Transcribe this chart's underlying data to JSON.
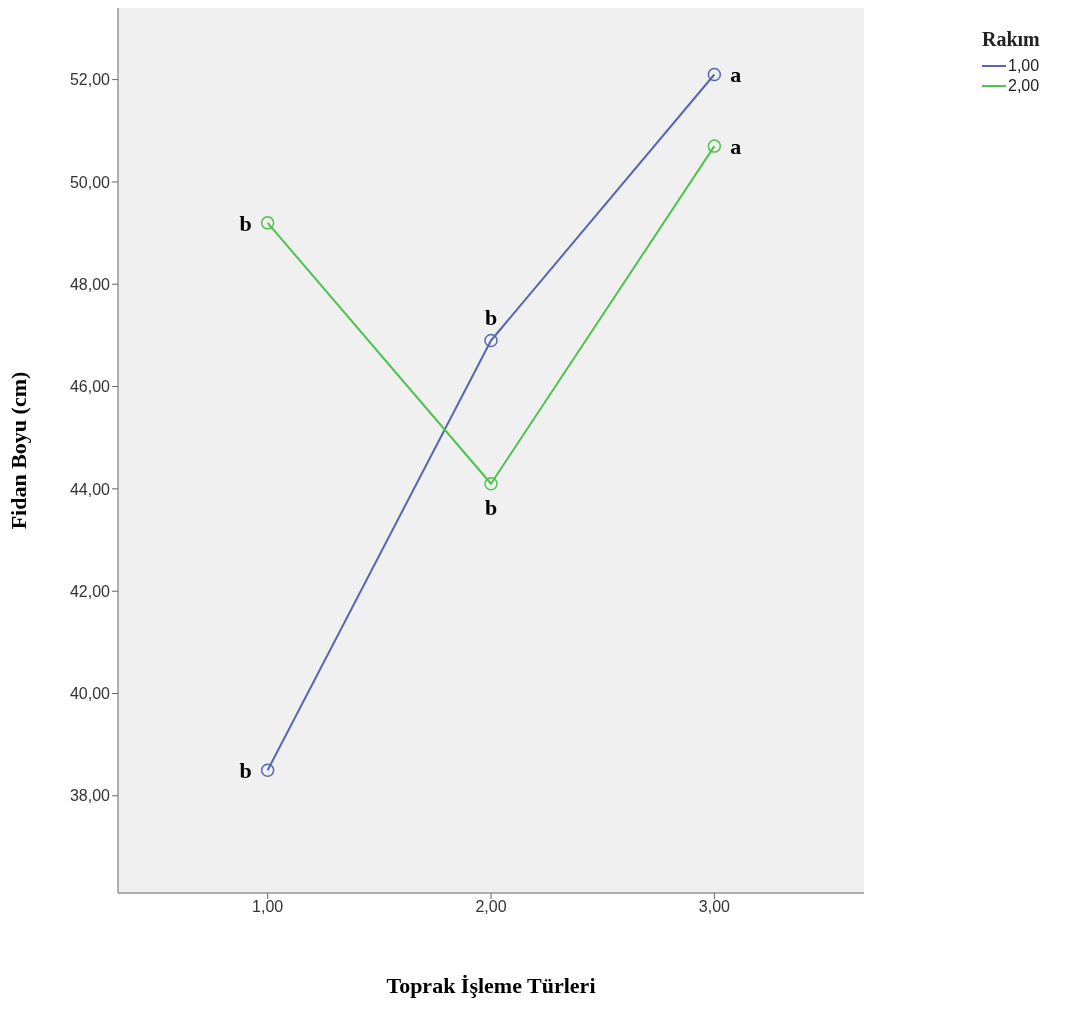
{
  "chart_data": {
    "type": "line",
    "xlabel": "Toprak İşleme Türleri",
    "ylabel": "Fidan Boyu (cm)",
    "legend_title": "Rakım",
    "legend": "top right",
    "marker": "circle",
    "line_style": "solid",
    "grid": false,
    "x": [
      1,
      2,
      3
    ],
    "xlim": [
      0.33,
      3.67
    ],
    "xticks": [
      {
        "value": 1,
        "label": "1,00"
      },
      {
        "value": 2,
        "label": "2,00"
      },
      {
        "value": 3,
        "label": "3,00"
      }
    ],
    "ylim": [
      36.1,
      53.4
    ],
    "yticks": [
      {
        "value": 38,
        "label": "38,00"
      },
      {
        "value": 40,
        "label": "40,00"
      },
      {
        "value": 42,
        "label": "42,00"
      },
      {
        "value": 44,
        "label": "44,00"
      },
      {
        "value": 46,
        "label": "46,00"
      },
      {
        "value": 48,
        "label": "48,00"
      },
      {
        "value": 50,
        "label": "50,00"
      },
      {
        "value": 52,
        "label": "52,00"
      }
    ],
    "series": [
      {
        "name": "1,00",
        "color": "#5766b0",
        "values": [
          38.5,
          46.9,
          52.1
        ]
      },
      {
        "name": "2,00",
        "color": "#4ec24e",
        "values": [
          49.2,
          44.1,
          50.7
        ]
      }
    ],
    "annotations": [
      {
        "text": "b",
        "x": 1,
        "y": 38.5
      },
      {
        "text": "b",
        "x": 2,
        "y": 46.9
      },
      {
        "text": "a",
        "x": 3,
        "y": 52.1
      },
      {
        "text": "b",
        "x": 1,
        "y": 49.2
      },
      {
        "text": "b",
        "x": 2,
        "y": 44.1
      },
      {
        "text": "a",
        "x": 3,
        "y": 50.7
      }
    ]
  }
}
